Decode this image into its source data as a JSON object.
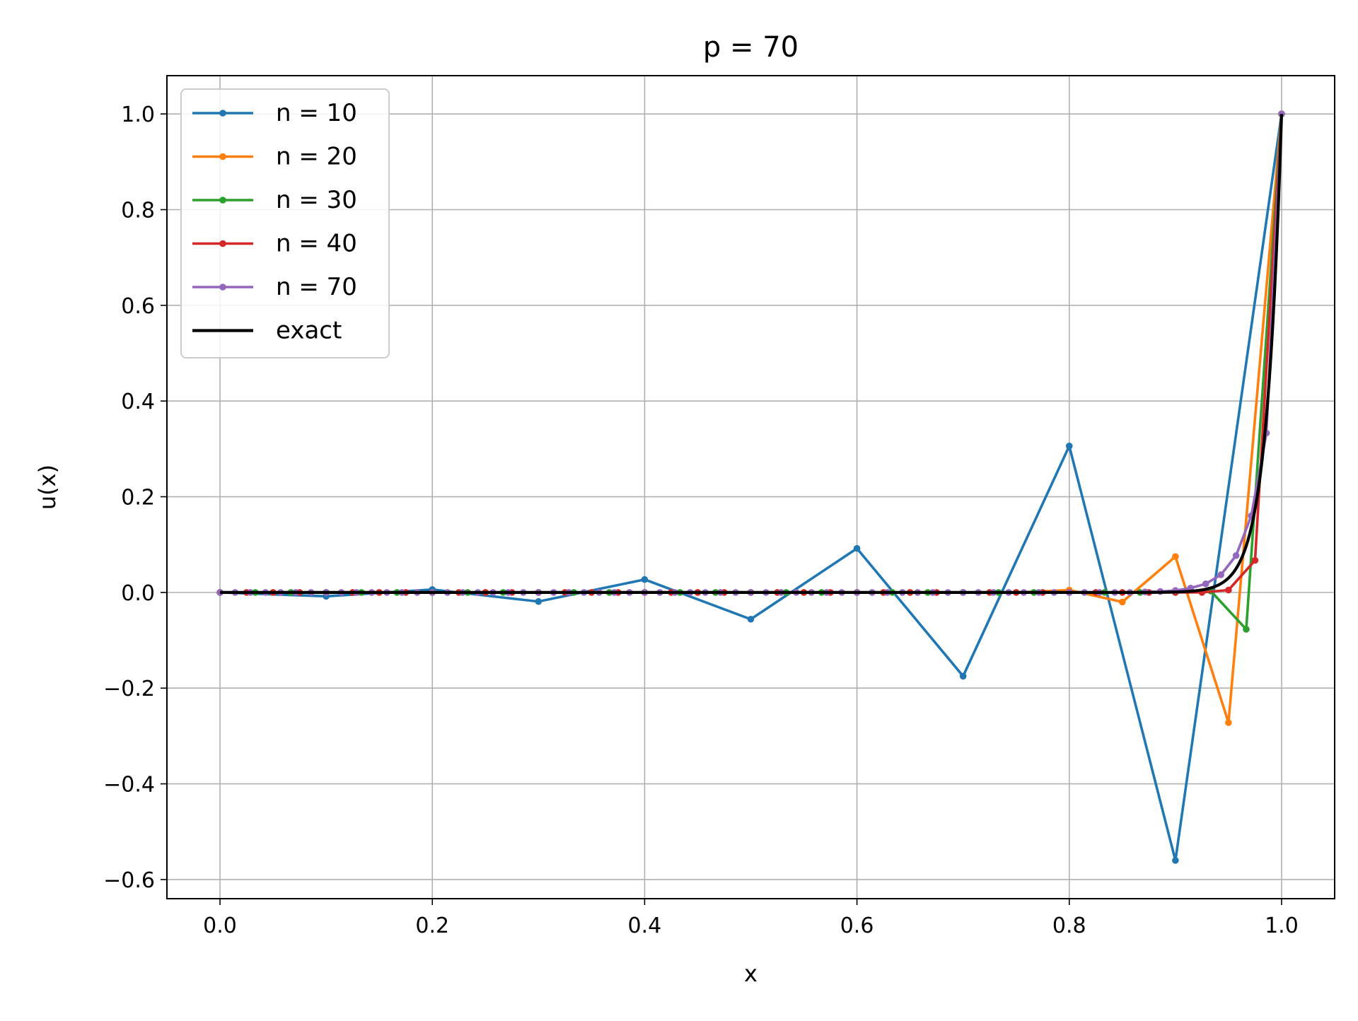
{
  "chart_data": {
    "type": "line",
    "title": "p = 70",
    "xlabel": "x",
    "ylabel": "u(x)",
    "xlim": [
      -0.05,
      1.05
    ],
    "ylim": [
      -0.64,
      1.08
    ],
    "xticks": [
      0.0,
      0.2,
      0.4,
      0.6,
      0.8,
      1.0
    ],
    "xtick_labels": [
      "0.0",
      "0.2",
      "0.4",
      "0.6",
      "0.8",
      "1.0"
    ],
    "yticks": [
      -0.6,
      -0.4,
      -0.2,
      0.0,
      0.2,
      0.4,
      0.6,
      0.8,
      1.0
    ],
    "ytick_labels": [
      "−0.6",
      "−0.4",
      "−0.2",
      "0.0",
      "0.2",
      "0.4",
      "0.6",
      "0.8",
      "1.0"
    ],
    "grid": true,
    "legend_position": "top-left",
    "series": [
      {
        "name": "n = 10",
        "color": "#1f77b4",
        "markers": true,
        "x": [
          0.0,
          0.1,
          0.2,
          0.3,
          0.4,
          0.5,
          0.6,
          0.7,
          0.8,
          0.9,
          1.0
        ],
        "y": [
          0.0,
          -0.008,
          0.006,
          -0.019,
          0.027,
          -0.056,
          0.092,
          -0.175,
          0.306,
          -0.56,
          1.0
        ]
      },
      {
        "name": "n = 20",
        "color": "#ff7f0e",
        "markers": true,
        "x": [
          0.0,
          0.05,
          0.1,
          0.15,
          0.2,
          0.25,
          0.3,
          0.35,
          0.4,
          0.45,
          0.5,
          0.55,
          0.6,
          0.65,
          0.7,
          0.75,
          0.8,
          0.85,
          0.9,
          0.95,
          1.0
        ],
        "y": [
          0.0,
          0.0,
          0.0,
          0.0,
          0.0,
          0.0,
          0.0,
          0.0,
          0.0,
          0.0,
          0.0,
          0.0,
          0.0,
          0.0,
          0.0,
          0.0,
          0.005,
          -0.02,
          0.075,
          -0.272,
          1.0
        ]
      },
      {
        "name": "n = 30",
        "color": "#2ca02c",
        "markers": true,
        "x": [
          0.0,
          0.0333,
          0.0667,
          0.1,
          0.1333,
          0.1667,
          0.2,
          0.2333,
          0.2667,
          0.3,
          0.3333,
          0.3667,
          0.4,
          0.4333,
          0.4667,
          0.5,
          0.5333,
          0.5667,
          0.6,
          0.6333,
          0.6667,
          0.7,
          0.7333,
          0.7667,
          0.8,
          0.8333,
          0.8667,
          0.9,
          0.9333,
          0.9667,
          1.0
        ],
        "y": [
          0.0,
          0.0,
          0.0,
          0.0,
          0.0,
          0.0,
          0.0,
          0.0,
          0.0,
          0.0,
          0.0,
          0.0,
          0.0,
          0.0,
          0.0,
          0.0,
          0.0,
          0.0,
          0.0,
          0.0,
          0.0,
          0.0,
          0.0,
          0.0,
          0.0,
          0.0,
          0.0,
          0.0,
          0.003,
          -0.077,
          1.0
        ]
      },
      {
        "name": "n = 40",
        "color": "#d62728",
        "markers": true,
        "x": [
          0.0,
          0.025,
          0.05,
          0.075,
          0.1,
          0.125,
          0.15,
          0.175,
          0.2,
          0.225,
          0.25,
          0.275,
          0.3,
          0.325,
          0.35,
          0.375,
          0.4,
          0.425,
          0.45,
          0.475,
          0.5,
          0.525,
          0.55,
          0.575,
          0.6,
          0.625,
          0.65,
          0.675,
          0.7,
          0.725,
          0.75,
          0.775,
          0.8,
          0.825,
          0.85,
          0.875,
          0.9,
          0.925,
          0.95,
          0.975,
          1.0
        ],
        "y": [
          0.0,
          0.0,
          0.0,
          0.0,
          0.0,
          0.0,
          0.0,
          0.0,
          0.0,
          0.0,
          0.0,
          0.0,
          0.0,
          0.0,
          0.0,
          0.0,
          0.0,
          0.0,
          0.0,
          0.0,
          0.0,
          0.0,
          0.0,
          0.0,
          0.0,
          0.0,
          0.0,
          0.0,
          0.0,
          0.0,
          0.0,
          0.0,
          0.0,
          0.0,
          0.0,
          0.0,
          0.0,
          0.0,
          0.005,
          0.067,
          1.0
        ]
      },
      {
        "name": "n = 70",
        "color": "#9467bd",
        "markers": true,
        "x_range": [
          0.0,
          1.0
        ],
        "points": 71,
        "y_tail": [
          0.0,
          0.001,
          0.002,
          0.004,
          0.009,
          0.018,
          0.037,
          0.077,
          0.16,
          0.333,
          1.0
        ]
      },
      {
        "name": "exact",
        "color": "#000000",
        "markers": false,
        "formula": "(exp(70*x)-1)/(exp(70)-1)"
      }
    ]
  }
}
